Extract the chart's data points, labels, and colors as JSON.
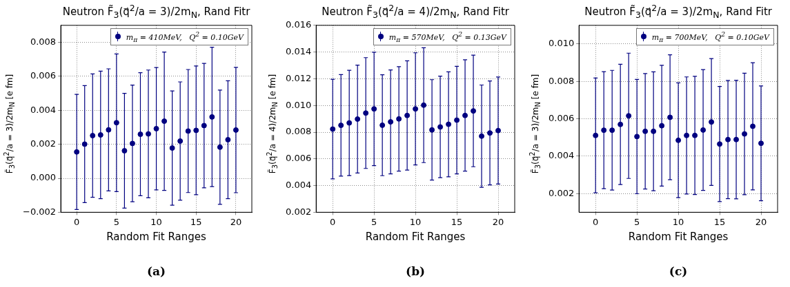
{
  "chart_data": [
    {
      "type": "scatter",
      "title": "Neutron F̃$_{3}$(q⃗$^{2}$/a = 3)/2m$_{N}$, Rand Fitr",
      "xlabel": "Random Fit Ranges",
      "ylabel": "F̃$_{3}$(q⃗$^{2}$/a = 3)/2m$_{N}$ [e fm]",
      "annotations": [
        "(a)"
      ],
      "x": [
        0,
        1,
        2,
        3,
        4,
        5,
        6,
        7,
        8,
        9,
        10,
        11,
        12,
        13,
        14,
        15,
        16,
        17,
        18,
        19,
        20
      ],
      "series": [
        {
          "name": "m$_{π}$ = 410MeV,   Q$^{2}$ = 0.10GeV",
          "color": "#000080",
          "values": [
            0.00155,
            0.00201,
            0.00251,
            0.00255,
            0.00285,
            0.00327,
            0.00162,
            0.00205,
            0.00259,
            0.00261,
            0.00292,
            0.00336,
            0.00178,
            0.00219,
            0.00278,
            0.00282,
            0.0031,
            0.00361,
            0.00183,
            0.00227,
            0.00284
          ],
          "errors": [
            0.00339,
            0.00344,
            0.00363,
            0.00375,
            0.00359,
            0.00405,
            0.00338,
            0.00343,
            0.00362,
            0.00376,
            0.0036,
            0.00407,
            0.00336,
            0.00348,
            0.00362,
            0.00379,
            0.00366,
            0.0041,
            0.00336,
            0.00347,
            0.00369
          ]
        }
      ],
      "xlim": [
        -2,
        22
      ],
      "xticks": [
        0,
        5,
        10,
        15,
        20
      ],
      "ylim": [
        -0.002,
        0.009
      ],
      "yticks": [
        {
          "value": -0.002,
          "label": "−0.002"
        },
        {
          "value": 0,
          "label": "0.000"
        },
        0.002,
        0.004,
        0.006,
        0.008
      ],
      "grid": true,
      "legend": "top right",
      "marker": "circle"
    },
    {
      "type": "scatter",
      "title": "Neutron F̃$_{3}$(q⃗$^{2}$/a = 4)/2m$_{N}$, Rand Fitr",
      "xlabel": "Random Fit Ranges",
      "ylabel": "F̃$_{3}$(q⃗$^{2}$/a = 4)/2m$_{N}$ [e fm]",
      "annotations": [
        "(b)"
      ],
      "x": [
        0,
        1,
        2,
        3,
        4,
        5,
        6,
        7,
        8,
        9,
        10,
        11,
        12,
        13,
        14,
        15,
        16,
        17,
        18,
        19,
        20
      ],
      "series": [
        {
          "name": "m$_{π}$ = 570MeV,   Q$^{2}$ = 0.13GeV",
          "color": "#000080",
          "values": [
            0.00823,
            0.00851,
            0.00869,
            0.00898,
            0.00943,
            0.00974,
            0.00852,
            0.00877,
            0.00899,
            0.00925,
            0.00974,
            0.01002,
            0.00817,
            0.00839,
            0.00859,
            0.0089,
            0.00925,
            0.00959,
            0.0077,
            0.00794,
            0.00812
          ],
          "errors": [
            0.00373,
            0.0038,
            0.00394,
            0.00404,
            0.00415,
            0.00425,
            0.00378,
            0.00389,
            0.00391,
            0.00409,
            0.0042,
            0.0043,
            0.00376,
            0.0038,
            0.00393,
            0.00403,
            0.00417,
            0.00418,
            0.00383,
            0.00389,
            0.00401
          ]
        }
      ],
      "xlim": [
        -2,
        22
      ],
      "xticks": [
        0,
        5,
        10,
        15,
        20
      ],
      "ylim": [
        0.002,
        0.016
      ],
      "yticks": [
        0.002,
        0.004,
        0.006,
        0.008,
        {
          "value": 0.01,
          "label": "0.010"
        },
        0.012,
        0.014,
        0.016
      ],
      "grid": true,
      "legend": "top right",
      "marker": "circle"
    },
    {
      "type": "scatter",
      "title": "Neutron F̃$_{3}$(q⃗$^{2}$/a = 3)/2m$_{N}$, Rand Fitr",
      "xlabel": "Random Fit Ranges",
      "ylabel": "F̃$_{3}$(q⃗$^{2}$/a = 3)/2m$_{N}$ [e fm]",
      "annotations": [
        "(c)"
      ],
      "x": [
        0,
        1,
        2,
        3,
        4,
        5,
        6,
        7,
        8,
        9,
        10,
        11,
        12,
        13,
        14,
        15,
        16,
        17,
        18,
        19,
        20
      ],
      "series": [
        {
          "name": "m$_{π}$ = 700MeV,   Q$^{2}$ = 0.10GeV",
          "color": "#000080",
          "values": [
            0.00511,
            0.00539,
            0.00539,
            0.0057,
            0.00616,
            0.00505,
            0.00533,
            0.00533,
            0.00563,
            0.00608,
            0.00485,
            0.00511,
            0.00511,
            0.0054,
            0.00583,
            0.00465,
            0.00489,
            0.00489,
            0.00519,
            0.0056,
            0.00469
          ],
          "errors": [
            0.00307,
            0.00313,
            0.0032,
            0.00322,
            0.00335,
            0.00306,
            0.00309,
            0.00318,
            0.00323,
            0.00334,
            0.00307,
            0.00313,
            0.00316,
            0.00323,
            0.00339,
            0.00308,
            0.00316,
            0.00317,
            0.00325,
            0.0034,
            0.00307
          ]
        }
      ],
      "xlim": [
        -2,
        22
      ],
      "xticks": [
        0,
        5,
        10,
        15,
        20
      ],
      "ylim": [
        0.001,
        0.011
      ],
      "yticks": [
        0.002,
        0.004,
        0.006,
        0.008,
        {
          "value": 0.01,
          "label": "0.010"
        }
      ],
      "grid": true,
      "legend": "top right",
      "marker": "circle"
    }
  ]
}
